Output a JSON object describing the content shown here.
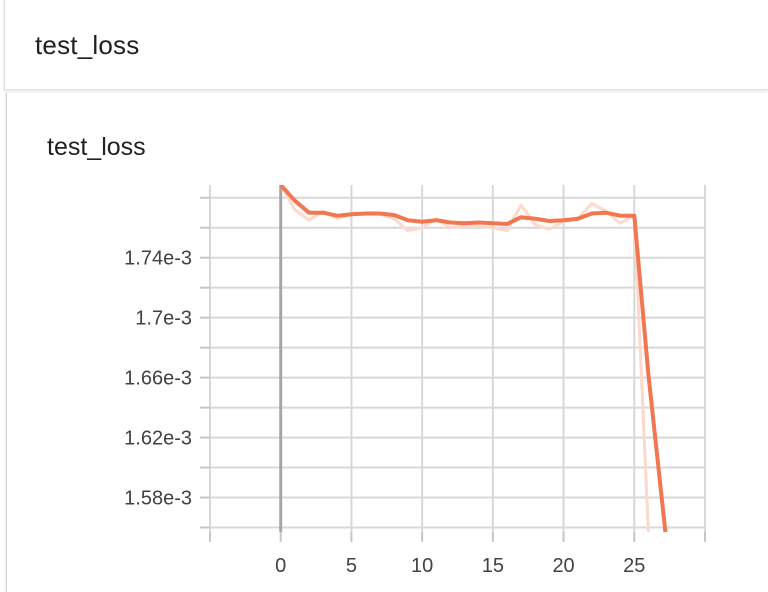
{
  "section": {
    "title": "test_loss"
  },
  "card": {
    "title": "test_loss"
  },
  "chart_data": {
    "type": "line",
    "title": "test_loss",
    "xlabel": "",
    "ylabel": "",
    "xlim": [
      -5,
      30
    ],
    "ylim": [
      0.001557,
      0.0017885
    ],
    "x_ticks": [
      0,
      5,
      10,
      15,
      20,
      25
    ],
    "x_tick_labels": [
      "0",
      "5",
      "10",
      "15",
      "20",
      "25"
    ],
    "y_ticks": [
      0.00158,
      0.00162,
      0.00166,
      0.0017,
      0.00174
    ],
    "y_tick_labels": [
      "1.58e-3",
      "1.62e-3",
      "1.66e-3",
      "1.7e-3",
      "1.74e-3"
    ],
    "y_minor_ticks": [
      0.00156,
      0.0016,
      0.00164,
      0.00168,
      0.00172,
      0.00176,
      0.00178
    ],
    "grid": true,
    "series": [
      {
        "role": "raw",
        "color": "#fbd9cc",
        "x": [
          0,
          1,
          2,
          3,
          4,
          5,
          6,
          7,
          8,
          9,
          10,
          11,
          12,
          13,
          14,
          15,
          16,
          17,
          18,
          19,
          20,
          21,
          22,
          23,
          24,
          25,
          26
        ],
        "values": [
          0.0017885,
          0.001772,
          0.001765,
          0.001771,
          0.001766,
          0.001769,
          0.001769,
          0.001769,
          0.001766,
          0.001758,
          0.00176,
          0.001766,
          0.00176,
          0.001761,
          0.001761,
          0.00176,
          0.001758,
          0.001775,
          0.001762,
          0.001759,
          0.001764,
          0.001766,
          0.001776,
          0.001771,
          0.001763,
          0.001768,
          0.001557
        ]
      },
      {
        "role": "smoothed",
        "color": "#f0774f",
        "x": [
          0,
          1,
          2,
          3,
          4,
          5,
          6,
          7,
          8,
          9,
          10,
          11,
          12,
          13,
          14,
          15,
          16,
          17,
          18,
          19,
          20,
          21,
          22,
          23,
          24,
          25,
          26,
          27.2
        ],
        "values": [
          0.0017885,
          0.001778,
          0.00177,
          0.00177,
          0.001768,
          0.001769,
          0.0017695,
          0.0017695,
          0.0017685,
          0.001765,
          0.001764,
          0.001765,
          0.0017635,
          0.001763,
          0.0017635,
          0.001763,
          0.0017625,
          0.001767,
          0.001766,
          0.0017645,
          0.001765,
          0.001766,
          0.0017695,
          0.00177,
          0.001768,
          0.001768,
          0.001662,
          0.001557
        ]
      }
    ]
  }
}
